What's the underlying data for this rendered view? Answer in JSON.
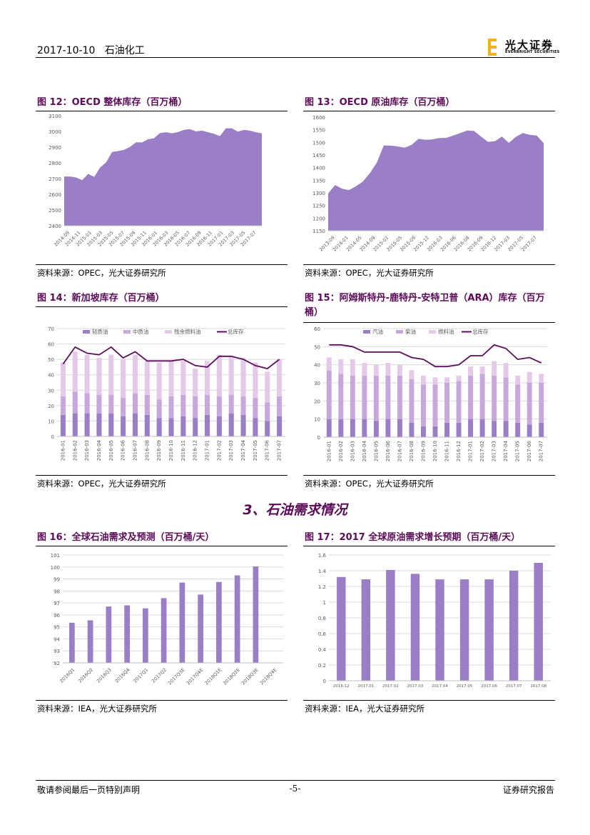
{
  "header": {
    "date": "2017-10-10",
    "industry": "石油化工",
    "logo_cn": "光大证券",
    "logo_en": "EVERBRIGHT SECURITIES"
  },
  "section_title": "3、石油需求情况",
  "footer": {
    "disclaimer": "敬请参阅最后一页特别声明",
    "page": "-5-",
    "doc_type": "证券研究报告"
  },
  "colors": {
    "area": "#9b7fc6",
    "bar_dark": "#9b7fc6",
    "bar_mid": "#c8a8dc",
    "bar_light": "#e4c9e8",
    "line": "#5c0f5a",
    "title": "#5b0b57"
  },
  "figures": [
    {
      "title": "图 12：OECD 整体库存（百万桶）",
      "source": "资料来源：OPEC，光大证券研究所"
    },
    {
      "title": "图 13：OECD 原油库存（百万桶）",
      "source": "资料来源：OPEC，光大证券研究所"
    },
    {
      "title": "图 14：新加坡库存（百万桶）",
      "source": "资料来源：OPEC，光大证券研究所"
    },
    {
      "title": "图 15：阿姆斯特丹-鹿特丹-安特卫普（ARA）库存（百万桶）",
      "source": "资料来源：OPEC，光大证券研究所"
    },
    {
      "title": "图 16：全球石油需求及预测（百万桶/天）",
      "source": "资料来源：IEA，光大证券研究所"
    },
    {
      "title": "图 17：2017 全球原油需求增长预期（百万桶/天）",
      "source": "资料来源：IEA，光大证券研究所"
    }
  ],
  "chart_data": [
    {
      "type": "area",
      "ylim": [
        2400,
        3100
      ],
      "yticks": [
        2400,
        2500,
        2600,
        2700,
        2800,
        2900,
        3000,
        3100
      ],
      "xtick_labels": [
        "2014-09",
        "2014-11",
        "2015-01",
        "2015-03",
        "2015-05",
        "2015-07",
        "2015-09",
        "2015-11",
        "2016-01",
        "2016-03",
        "2016-05",
        "2016-07",
        "2016-09",
        "2016-11",
        "2017-01",
        "2017-03",
        "2017-05",
        "2017-07"
      ],
      "values": [
        2713,
        2713,
        2707,
        2690,
        2730,
        2710,
        2771,
        2803,
        2870,
        2875,
        2883,
        2902,
        2931,
        2930,
        2950,
        2957,
        2990,
        2995,
        2988,
        2996,
        3010,
        3015,
        3000,
        3005,
        2995,
        2985,
        2970,
        3020,
        3020,
        2998,
        3010,
        3005,
        2995,
        2988
      ]
    },
    {
      "type": "area",
      "ylim": [
        1150,
        1600
      ],
      "yticks": [
        1150,
        1200,
        1250,
        1300,
        1350,
        1400,
        1450,
        1500,
        1550,
        1600
      ],
      "xtick_labels": [
        "2013-09",
        "2014-01",
        "2014-05",
        "2014-09",
        "2015-01",
        "2015-05",
        "2015-09",
        "2015-12",
        "2016-03",
        "2016-06",
        "2016-08",
        "2016-09",
        "2016-12",
        "2017-03",
        "2017-05",
        "2017-07"
      ],
      "values": [
        1298,
        1331,
        1316,
        1311,
        1326,
        1345,
        1378,
        1420,
        1488,
        1487,
        1484,
        1479,
        1490,
        1514,
        1510,
        1512,
        1517,
        1518,
        1527,
        1537,
        1547,
        1545,
        1523,
        1502,
        1505,
        1523,
        1498,
        1522,
        1537,
        1530,
        1527,
        1497
      ]
    },
    {
      "type": "bar+line",
      "stacked": true,
      "ylim": [
        0,
        70
      ],
      "yticks": [
        0,
        10,
        20,
        30,
        40,
        50,
        60,
        70
      ],
      "legend_position": "top",
      "categories": [
        "2016-01",
        "2016-02",
        "2016-03",
        "2016-04",
        "2016-05",
        "2016-06",
        "2016-07",
        "2016-08",
        "2016-09",
        "2016-10",
        "2016-11",
        "2016-12",
        "2017-01",
        "2017-02",
        "2017-03",
        "2017-04",
        "2017-05",
        "2017-06",
        "2017-07"
      ],
      "series": [
        {
          "name": "轻质油",
          "kind": "bar",
          "values": [
            14,
            15,
            15,
            15,
            15,
            13,
            15,
            14,
            12,
            12,
            13,
            12,
            14,
            13,
            15,
            14,
            12,
            10,
            13
          ]
        },
        {
          "name": "中质油",
          "kind": "bar",
          "values": [
            12,
            14,
            13,
            12,
            12,
            12,
            13,
            13,
            12,
            14,
            14,
            14,
            13,
            13,
            12,
            12,
            13,
            12,
            13
          ]
        },
        {
          "name": "残余燃料油",
          "kind": "bar",
          "values": [
            22,
            26,
            25,
            24,
            26,
            25,
            25,
            22,
            24,
            23,
            22,
            18,
            22,
            27,
            25,
            25,
            23,
            20,
            24
          ]
        },
        {
          "name": "总库存",
          "kind": "line",
          "values": [
            47,
            58,
            54,
            53,
            58,
            51,
            55,
            49,
            49,
            49,
            50,
            46,
            45,
            52,
            52,
            50,
            46,
            44,
            50
          ]
        }
      ]
    },
    {
      "type": "bar+line",
      "stacked": true,
      "ylim": [
        0,
        60
      ],
      "yticks": [
        0,
        10,
        20,
        30,
        40,
        50,
        60
      ],
      "legend_position": "top",
      "categories": [
        "2016-01",
        "2016-02",
        "2016-03",
        "2016-04",
        "2016-05",
        "2016-06",
        "2016-07",
        "2016-08",
        "2016-09",
        "2016-10",
        "2016-11",
        "2016-12",
        "2017-01",
        "2017-02",
        "2017-03",
        "2017-04",
        "2017-05",
        "2017-06",
        "2017-07"
      ],
      "series": [
        {
          "name": "汽油",
          "kind": "bar",
          "values": [
            10,
            10,
            10,
            10,
            9,
            10,
            10,
            8,
            6,
            6,
            8,
            8,
            10,
            10,
            9,
            9,
            8,
            7,
            8
          ]
        },
        {
          "name": "柴油",
          "kind": "bar",
          "values": [
            27,
            25,
            24,
            24,
            25,
            24,
            24,
            24,
            23,
            23,
            22,
            23,
            24,
            25,
            25,
            24,
            21,
            23,
            22
          ]
        },
        {
          "name": "燃料油",
          "kind": "bar",
          "values": [
            7,
            8,
            9,
            7,
            6,
            7,
            6,
            5,
            5,
            4,
            3,
            3,
            5,
            4,
            8,
            8,
            5,
            6,
            5
          ]
        },
        {
          "name": "总库存",
          "kind": "line",
          "values": [
            51,
            51,
            50,
            47,
            47,
            47,
            47,
            44,
            43,
            39,
            39,
            40,
            45,
            45,
            51,
            49,
            43,
            44,
            41
          ]
        }
      ]
    },
    {
      "type": "bar",
      "ylim": [
        92,
        101
      ],
      "yticks": [
        92,
        93,
        94,
        95,
        96,
        97,
        98,
        99,
        100,
        101
      ],
      "categories": [
        "2016Q1",
        "2016Q2",
        "2016Q3",
        "2016Q4",
        "2017Q1",
        "2017Q2",
        "2017Q3E",
        "2017Q4E",
        "2018Q1E",
        "2018Q2E",
        "2018Q3E",
        "2018Q4E"
      ],
      "values": [
        95.35,
        95.55,
        96.7,
        96.8,
        96.55,
        97.4,
        98.7,
        97.7,
        98.75,
        99.3,
        100.05,
        null
      ]
    },
    {
      "type": "bar",
      "ylim": [
        0,
        1.6
      ],
      "yticks": [
        0,
        0.2,
        0.4,
        0.6,
        0.8,
        1,
        1.2,
        1.4,
        1.6
      ],
      "categories": [
        "2016.12",
        "2017.01",
        "2017.02",
        "2017.03",
        "2017.04",
        "2017.05",
        "2017.06",
        "2017.07",
        "2017.08"
      ],
      "values": [
        1.32,
        1.29,
        1.41,
        1.36,
        1.29,
        1.29,
        1.29,
        1.4,
        1.5
      ]
    }
  ]
}
